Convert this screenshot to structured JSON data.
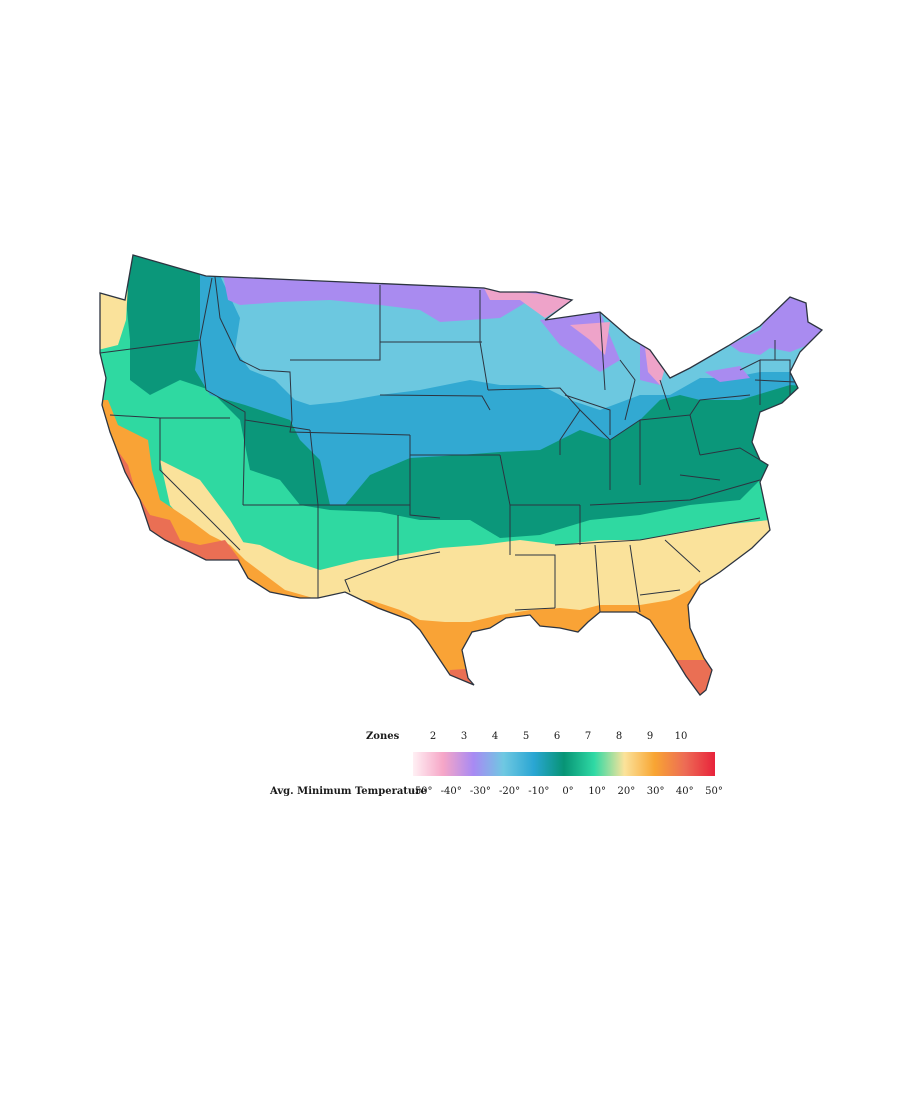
{
  "map": {
    "region": "contiguous-united-states",
    "zone_colors": {
      "2": "#f3c3dc",
      "3": "#eea3c9",
      "4": "#a98bf0",
      "5": "#6cc8e0",
      "6": "#32a9d2",
      "7": "#0b977a",
      "8": "#2fd9a1",
      "9": "#fae29b",
      "10": "#f9a336",
      "11": "#ea6f54"
    },
    "border_color": "#2c3440"
  },
  "legend": {
    "zones_label": "Zones",
    "zones": [
      "2",
      "3",
      "4",
      "5",
      "6",
      "7",
      "8",
      "9",
      "10"
    ],
    "temp_label": "Avg. Minimum Temperature",
    "temps": [
      "-50°",
      "-40°",
      "-30°",
      "-20°",
      "-10°",
      "0°",
      "10°",
      "20°",
      "30°",
      "40°",
      "50°"
    ],
    "gradient_colors": [
      "#fff0f4",
      "#f6a6c7",
      "#a88af3",
      "#6fc8e2",
      "#2aa6d3",
      "#079475",
      "#2fd9a4",
      "#fbe39b",
      "#f8a533",
      "#ed6c55",
      "#e8233b"
    ]
  }
}
